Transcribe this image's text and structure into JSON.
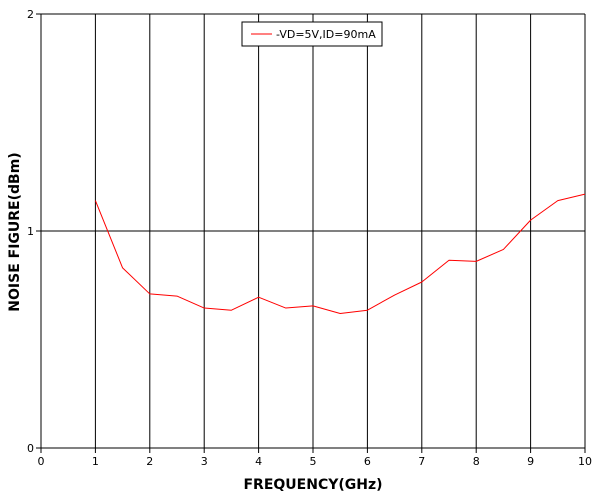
{
  "chart_data": {
    "type": "line",
    "xlabel": "FREQUENCY(GHz)",
    "ylabel": "NOISE FIGURE(dBm)",
    "xlim": [
      0,
      10
    ],
    "ylim": [
      0,
      2
    ],
    "x_ticks": [
      "0",
      "1",
      "2",
      "3",
      "4",
      "5",
      "6",
      "7",
      "8",
      "9",
      "10"
    ],
    "y_ticks": [
      "0",
      "1",
      "2"
    ],
    "grid": "on",
    "legend_position": "top-center",
    "series": [
      {
        "name": "-VD=5V,ID=90mA",
        "color": "#ff0000",
        "x": [
          1,
          1.5,
          2,
          2.5,
          3,
          3.5,
          4,
          4.5,
          5,
          5.5,
          6,
          6.5,
          7,
          7.5,
          8,
          8.5,
          9,
          9.5,
          10
        ],
        "y": [
          1.14,
          0.83,
          0.71,
          0.7,
          0.645,
          0.635,
          0.695,
          0.645,
          0.655,
          0.62,
          0.635,
          0.705,
          0.765,
          0.865,
          0.86,
          0.915,
          1.05,
          1.14,
          1.17
        ]
      }
    ]
  }
}
